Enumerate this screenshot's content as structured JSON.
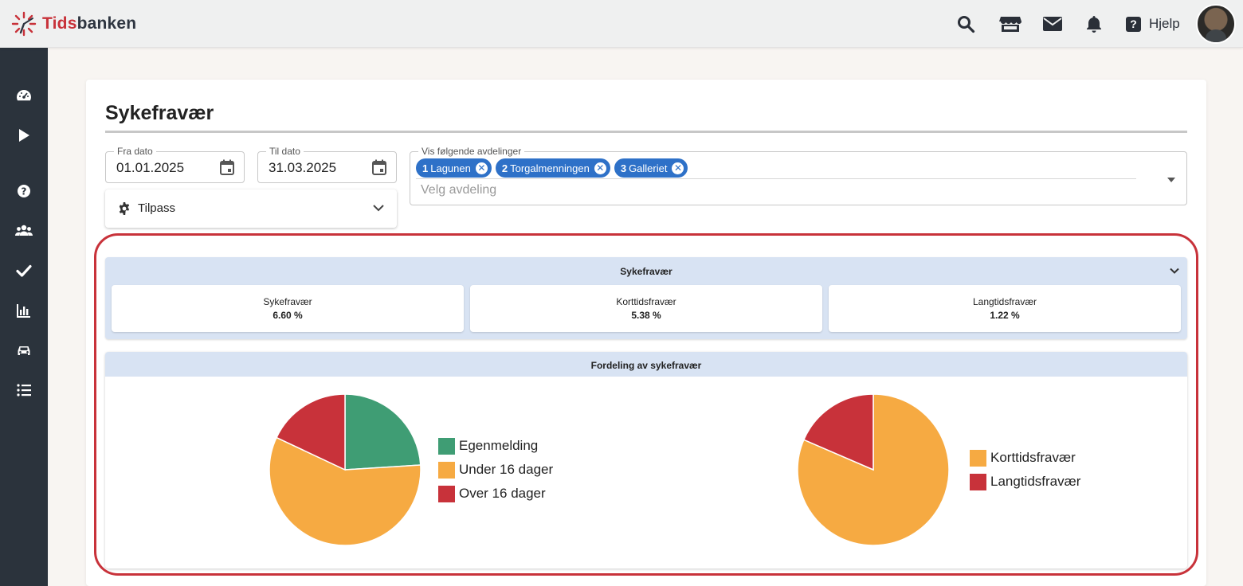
{
  "header": {
    "logo_red": "Tids",
    "logo_dark": "banken",
    "help_glyph": "?",
    "help_label": "Hjelp",
    "icons": [
      "search-icon",
      "store-icon",
      "mail-icon",
      "bell-icon",
      "help-icon"
    ]
  },
  "sidebar": {
    "icons": [
      "dashboard-icon",
      "play-icon",
      "help-circle-icon",
      "users-icon",
      "check-icon",
      "bar-chart-icon",
      "car-icon",
      "list-icon"
    ]
  },
  "page": {
    "title": "Sykefravær"
  },
  "filters": {
    "from_label": "Fra dato",
    "from_value": "01.01.2025",
    "to_label": "Til dato",
    "to_value": "31.03.2025",
    "customize_label": "Tilpass",
    "departments_label": "Vis følgende avdelinger",
    "departments_placeholder": "Velg avdeling",
    "chips": [
      {
        "num": "1",
        "name": "Lagunen"
      },
      {
        "num": "2",
        "name": "Torgalmenningen"
      },
      {
        "num": "3",
        "name": "Galleriet"
      }
    ],
    "chip_remove_glyph": "✕"
  },
  "summary": {
    "title": "Sykefravær",
    "stats": [
      {
        "label": "Sykefravær",
        "value": "6.60 %"
      },
      {
        "label": "Korttidsfravær",
        "value": "5.38 %"
      },
      {
        "label": "Langtidsfravær",
        "value": "1.22 %"
      }
    ]
  },
  "distribution": {
    "title": "Fordeling av sykefravær"
  },
  "colors": {
    "brand_red": "#c8323a",
    "green": "#3f9d74",
    "orange": "#f6aa42",
    "red": "#c8323a",
    "chip_blue": "#2e71c8",
    "sidebar": "#2b333c",
    "panel_header": "#d8e3f3"
  },
  "chart_data": [
    {
      "type": "pie",
      "title": "",
      "series": [
        {
          "name": "Egenmelding",
          "value": 24,
          "color": "#3f9d74"
        },
        {
          "name": "Under 16 dager",
          "value": 58,
          "color": "#f6aa42"
        },
        {
          "name": "Over 16 dager",
          "value": 18,
          "color": "#c8323a"
        }
      ],
      "legend": "right"
    },
    {
      "type": "pie",
      "title": "",
      "series": [
        {
          "name": "Korttidsfravær",
          "value": 81.5,
          "color": "#f6aa42"
        },
        {
          "name": "Langtidsfravær",
          "value": 18.5,
          "color": "#c8323a"
        }
      ],
      "legend": "right"
    }
  ]
}
